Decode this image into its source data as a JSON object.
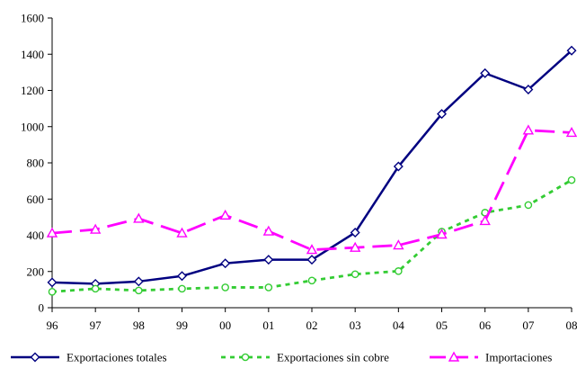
{
  "chart_data": {
    "type": "line",
    "categories": [
      "96",
      "97",
      "98",
      "99",
      "00",
      "01",
      "02",
      "03",
      "04",
      "05",
      "06",
      "07",
      "08"
    ],
    "ylim": [
      0,
      1600
    ],
    "yticks": [
      0,
      200,
      400,
      600,
      800,
      1000,
      1200,
      1400,
      1600
    ],
    "ytick_labels": [
      "0",
      "200",
      "400",
      "600",
      "800",
      "1000",
      "1200",
      "1400",
      "1600"
    ],
    "grid": false,
    "legend_position": "bottom",
    "series": [
      {
        "name": "Exportaciones totales",
        "color": "#000080",
        "line_style": "solid",
        "marker": "diamond",
        "values": [
          140,
          132,
          145,
          175,
          245,
          265,
          265,
          415,
          780,
          1070,
          1295,
          1205,
          1420
        ]
      },
      {
        "name": "Exportaciones sin cobre",
        "color": "#33cc33",
        "line_style": "dotted",
        "marker": "circle",
        "values": [
          88,
          105,
          95,
          105,
          112,
          112,
          150,
          185,
          202,
          420,
          525,
          567,
          705
        ]
      },
      {
        "name": "Importaciones",
        "color": "#ff00ff",
        "line_style": "dashed",
        "marker": "triangle",
        "values": [
          412,
          432,
          492,
          412,
          510,
          422,
          320,
          332,
          345,
          405,
          480,
          980,
          967
        ]
      }
    ]
  }
}
